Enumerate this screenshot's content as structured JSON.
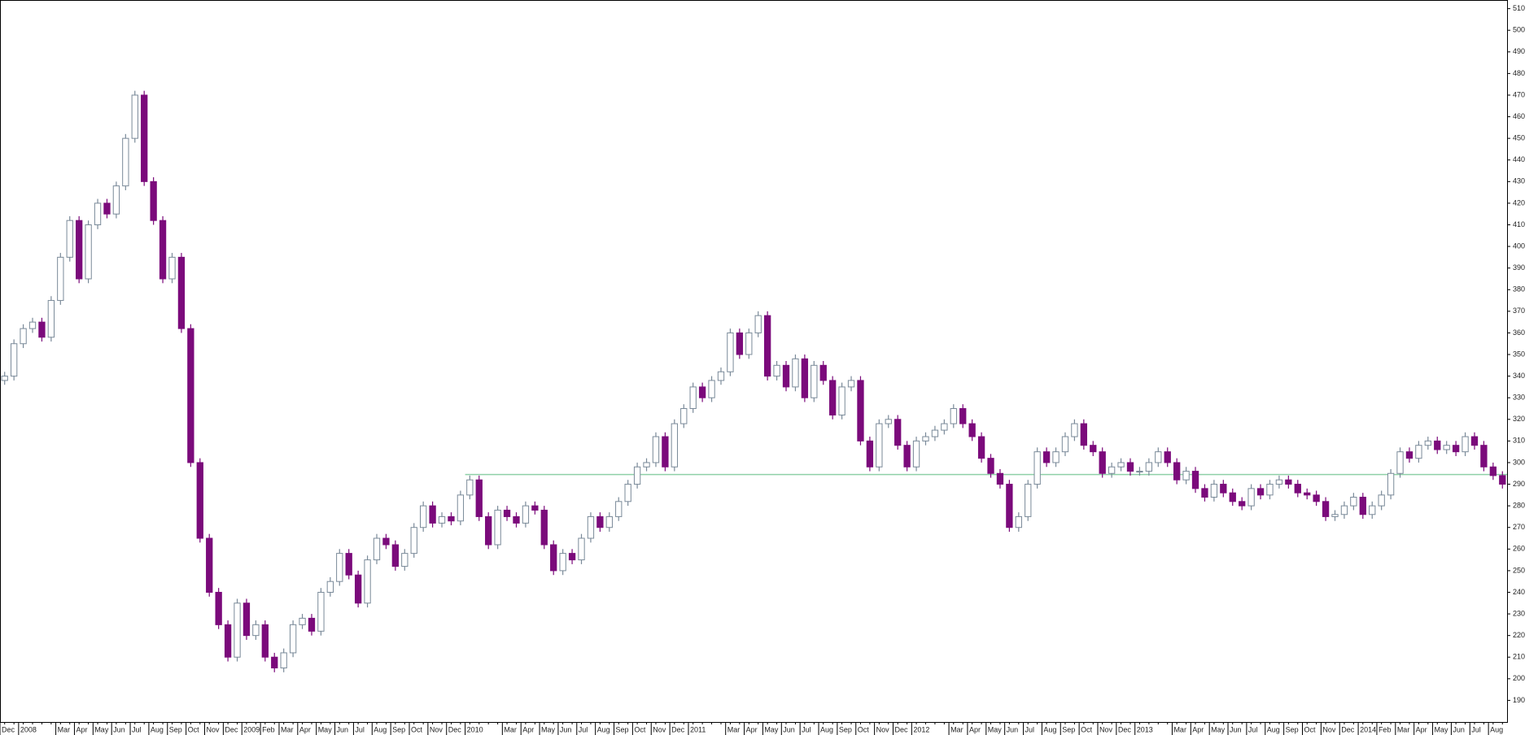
{
  "chart_data": {
    "type": "candlestick",
    "categories": [
      "Dec",
      null,
      "2008",
      null,
      null,
      null,
      "Mar",
      null,
      "Apr",
      null,
      "May",
      null,
      "Jun",
      null,
      "Jul",
      null,
      "Aug",
      null,
      "Sep",
      null,
      "Oct",
      null,
      "Nov",
      null,
      "Dec",
      null,
      "2009",
      null,
      "Feb",
      null,
      "Mar",
      null,
      "Apr",
      null,
      "May",
      null,
      "Jun",
      null,
      "Jul",
      null,
      "Aug",
      null,
      "Sep",
      null,
      "Oct",
      null,
      "Nov",
      null,
      "Dec",
      null,
      "2010",
      null,
      null,
      null,
      "Mar",
      null,
      "Apr",
      null,
      "May",
      null,
      "Jun",
      null,
      "Jul",
      null,
      "Aug",
      null,
      "Sep",
      null,
      "Oct",
      null,
      "Nov",
      null,
      "Dec",
      null,
      "2011",
      null,
      null,
      null,
      "Mar",
      null,
      "Apr",
      null,
      "May",
      null,
      "Jun",
      null,
      "Jul",
      null,
      "Aug",
      null,
      "Sep",
      null,
      "Oct",
      null,
      "Nov",
      null,
      "Dec",
      null,
      "2012",
      null,
      null,
      null,
      "Mar",
      null,
      "Apr",
      null,
      "May",
      null,
      "Jun",
      null,
      "Jul",
      null,
      "Aug",
      null,
      "Sep",
      null,
      "Oct",
      null,
      "Nov",
      null,
      "Dec",
      null,
      "2013",
      null,
      null,
      null,
      "Mar",
      null,
      "Apr",
      null,
      "May",
      null,
      "Jun",
      null,
      "Jul",
      null,
      "Aug",
      null,
      "Sep",
      null,
      "Oct",
      null,
      "Nov",
      null,
      "Dec",
      null,
      "2014",
      null,
      "Feb",
      null,
      "Mar",
      null,
      "Apr",
      null,
      "May",
      null,
      "Jun",
      null,
      "Jul",
      null,
      "Aug",
      null
    ],
    "open": [
      338,
      340,
      355,
      362,
      365,
      358,
      375,
      395,
      412,
      385,
      410,
      420,
      415,
      428,
      450,
      470,
      430,
      412,
      385,
      395,
      362,
      300,
      265,
      240,
      225,
      210,
      235,
      220,
      225,
      210,
      205,
      212,
      225,
      228,
      222,
      240,
      245,
      258,
      248,
      235,
      255,
      265,
      262,
      252,
      258,
      270,
      280,
      272,
      275,
      273,
      285,
      292,
      275,
      262,
      278,
      275,
      272,
      280,
      278,
      262,
      250,
      258,
      255,
      265,
      275,
      270,
      275,
      282,
      290,
      298,
      300,
      312,
      298,
      318,
      325,
      335,
      330,
      338,
      342,
      360,
      350,
      360,
      368,
      340,
      345,
      335,
      348,
      330,
      345,
      338,
      322,
      335,
      338,
      310,
      298,
      318,
      320,
      308,
      298,
      310,
      312,
      315,
      318,
      325,
      318,
      312,
      302,
      295,
      290,
      270,
      275,
      290,
      305,
      300,
      305,
      312,
      318,
      308,
      305,
      295,
      298,
      300,
      296,
      296,
      300,
      305,
      300,
      292,
      296,
      288,
      284,
      290,
      286,
      282,
      280,
      288,
      285,
      290,
      292,
      290,
      286,
      285,
      282,
      275,
      276,
      280,
      284,
      276,
      280,
      285,
      295,
      305,
      302,
      308,
      310,
      306,
      308,
      305,
      312,
      308,
      298,
      294
    ],
    "high": [
      342,
      357,
      364,
      367,
      367,
      377,
      397,
      414,
      414,
      412,
      422,
      422,
      430,
      452,
      472,
      472,
      432,
      414,
      397,
      397,
      364,
      302,
      267,
      242,
      227,
      237,
      237,
      227,
      227,
      212,
      214,
      227,
      230,
      230,
      242,
      247,
      260,
      260,
      250,
      257,
      267,
      267,
      264,
      260,
      272,
      282,
      282,
      277,
      277,
      287,
      294,
      294,
      277,
      280,
      280,
      277,
      282,
      282,
      280,
      264,
      260,
      260,
      267,
      277,
      277,
      277,
      284,
      292,
      300,
      302,
      314,
      314,
      320,
      327,
      337,
      337,
      340,
      344,
      362,
      362,
      362,
      370,
      370,
      347,
      347,
      350,
      350,
      347,
      347,
      340,
      337,
      340,
      340,
      312,
      320,
      322,
      322,
      310,
      312,
      314,
      317,
      320,
      327,
      327,
      320,
      314,
      304,
      297,
      292,
      277,
      292,
      307,
      307,
      307,
      314,
      320,
      320,
      310,
      307,
      300,
      302,
      302,
      298,
      302,
      307,
      307,
      302,
      298,
      298,
      290,
      292,
      292,
      288,
      284,
      290,
      290,
      292,
      294,
      294,
      292,
      288,
      287,
      284,
      278,
      282,
      286,
      286,
      282,
      287,
      297,
      307,
      307,
      310,
      312,
      312,
      310,
      310,
      314,
      314,
      310,
      300,
      296
    ],
    "low": [
      336,
      338,
      353,
      360,
      356,
      356,
      373,
      393,
      383,
      383,
      408,
      413,
      413,
      426,
      448,
      428,
      410,
      383,
      383,
      360,
      298,
      263,
      238,
      223,
      208,
      208,
      218,
      218,
      208,
      203,
      203,
      210,
      223,
      220,
      220,
      238,
      243,
      246,
      233,
      233,
      253,
      260,
      250,
      250,
      256,
      268,
      270,
      270,
      271,
      271,
      283,
      273,
      260,
      260,
      273,
      270,
      270,
      276,
      260,
      248,
      248,
      253,
      253,
      263,
      268,
      268,
      273,
      280,
      288,
      296,
      298,
      296,
      296,
      316,
      323,
      328,
      328,
      336,
      340,
      348,
      348,
      358,
      338,
      338,
      333,
      333,
      328,
      328,
      336,
      320,
      320,
      333,
      308,
      296,
      296,
      316,
      306,
      296,
      296,
      308,
      310,
      313,
      316,
      316,
      310,
      300,
      293,
      288,
      268,
      268,
      273,
      288,
      298,
      298,
      303,
      310,
      306,
      303,
      293,
      293,
      296,
      294,
      294,
      294,
      298,
      298,
      290,
      290,
      286,
      282,
      282,
      284,
      280,
      278,
      278,
      283,
      283,
      288,
      288,
      284,
      283,
      280,
      273,
      273,
      274,
      278,
      274,
      274,
      278,
      283,
      293,
      300,
      300,
      306,
      304,
      304,
      303,
      303,
      306,
      296,
      292,
      288
    ],
    "close": [
      340,
      355,
      362,
      365,
      358,
      375,
      395,
      412,
      385,
      410,
      420,
      415,
      428,
      450,
      470,
      430,
      412,
      385,
      395,
      362,
      300,
      265,
      240,
      225,
      210,
      235,
      220,
      225,
      210,
      205,
      212,
      225,
      228,
      222,
      240,
      245,
      258,
      248,
      235,
      255,
      265,
      262,
      252,
      258,
      270,
      280,
      272,
      275,
      273,
      285,
      292,
      275,
      262,
      278,
      275,
      272,
      280,
      278,
      262,
      250,
      258,
      255,
      265,
      275,
      270,
      275,
      282,
      290,
      298,
      300,
      312,
      298,
      318,
      325,
      335,
      330,
      338,
      342,
      360,
      350,
      360,
      368,
      340,
      345,
      335,
      348,
      330,
      345,
      338,
      322,
      335,
      338,
      310,
      298,
      318,
      320,
      308,
      298,
      310,
      312,
      315,
      318,
      325,
      318,
      312,
      302,
      295,
      290,
      270,
      275,
      290,
      305,
      300,
      305,
      312,
      318,
      308,
      305,
      295,
      298,
      300,
      296,
      296,
      300,
      305,
      300,
      292,
      296,
      288,
      284,
      290,
      286,
      282,
      280,
      288,
      285,
      290,
      292,
      290,
      286,
      285,
      282,
      275,
      276,
      280,
      284,
      276,
      280,
      285,
      295,
      305,
      302,
      308,
      310,
      306,
      308,
      305,
      312,
      308,
      298,
      294,
      290
    ],
    "up_color": "#ffffff",
    "up_stroke": "#7a8a99",
    "down_color": "#7b0a7b",
    "ylim": [
      180,
      514
    ],
    "yticks": [
      190,
      200,
      210,
      220,
      230,
      240,
      250,
      260,
      270,
      280,
      290,
      300,
      310,
      320,
      330,
      340,
      350,
      360,
      370,
      380,
      390,
      400,
      410,
      420,
      430,
      440,
      450,
      460,
      470,
      480,
      490,
      500,
      510
    ],
    "reference_line": {
      "value": 294.5,
      "start": "2010",
      "color": "#8fd0a8"
    }
  }
}
